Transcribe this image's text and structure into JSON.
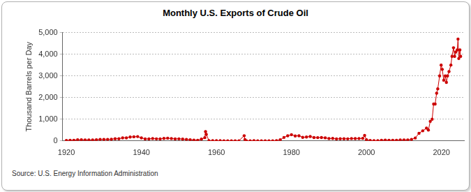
{
  "chart_data": {
    "type": "line",
    "title": "Monthly U.S. Exports of Crude Oil",
    "y_label": "Thousand Barrels per Day",
    "source": "Source: U.S. Energy Information Administration",
    "color": "#cc0000",
    "marker": "circle",
    "line_style": "solid",
    "grid": true,
    "xlim": [
      1919,
      2026
    ],
    "xticks": [
      1920,
      1940,
      1960,
      1980,
      2000,
      2020
    ],
    "ylim": [
      0,
      5000
    ],
    "yticks": [
      0,
      {
        "value": 1000,
        "label": "1,000"
      },
      {
        "value": 2000,
        "label": "2,000"
      },
      {
        "value": 3000,
        "label": "3,000"
      },
      {
        "value": 4000,
        "label": "4,000"
      },
      {
        "value": 5000,
        "label": "5,000"
      }
    ],
    "x": [
      1920,
      1921,
      1922,
      1923,
      1924,
      1925,
      1926,
      1927,
      1928,
      1929,
      1930,
      1931,
      1932,
      1933,
      1934,
      1935,
      1936,
      1937,
      1938,
      1939,
      1940,
      1941,
      1942,
      1943,
      1944,
      1945,
      1946,
      1947,
      1948,
      1949,
      1950,
      1951,
      1952,
      1953,
      1954,
      1955,
      1956,
      1956.9,
      1957.1,
      1957.3,
      1958,
      1959,
      1960,
      1961,
      1962,
      1963,
      1964,
      1965,
      1966,
      1967.4,
      1967.6,
      1968,
      1969,
      1970,
      1971,
      1972,
      1973,
      1974,
      1975,
      1976,
      1977,
      1978,
      1979,
      1980,
      1981,
      1982,
      1983,
      1984,
      1985,
      1986,
      1987,
      1988,
      1989,
      1990,
      1991,
      1992,
      1993,
      1994,
      1995,
      1996,
      1997,
      1998,
      1999,
      1999.5,
      2000,
      2001,
      2002,
      2003,
      2004,
      2005,
      2006,
      2007,
      2008,
      2009,
      2010,
      2011,
      2012,
      2013,
      2014,
      2015,
      2016,
      2016.5,
      2017,
      2017.5,
      2017.9,
      2018.3,
      2018.7,
      2019,
      2019.5,
      2019.9,
      2020.2,
      2020.6,
      2021,
      2021.3,
      2021.6,
      2022,
      2022.5,
      2022.8,
      2023.2,
      2023.5,
      2023.8,
      2024.2,
      2024.4,
      2024.6,
      2024.9,
      2025.1
    ],
    "values": [
      20,
      25,
      30,
      50,
      50,
      40,
      40,
      40,
      50,
      70,
      65,
      70,
      75,
      100,
      100,
      140,
      140,
      180,
      190,
      200,
      140,
      90,
      90,
      110,
      95,
      90,
      115,
      125,
      110,
      90,
      95,
      80,
      70,
      55,
      35,
      30,
      80,
      150,
      430,
      300,
      15,
      10,
      8,
      8,
      5,
      6,
      5,
      5,
      5,
      240,
      60,
      5,
      4,
      14,
      1,
      1,
      2,
      3,
      6,
      8,
      50,
      160,
      235,
      287,
      228,
      236,
      164,
      181,
      204,
      154,
      151,
      155,
      142,
      109,
      116,
      89,
      98,
      99,
      95,
      110,
      108,
      110,
      118,
      250,
      50,
      20,
      9,
      12,
      27,
      32,
      25,
      27,
      29,
      44,
      42,
      47,
      67,
      134,
      351,
      465,
      591,
      500,
      900,
      1000,
      1700,
      1700,
      2200,
      2400,
      3000,
      3500,
      3300,
      2800,
      3000,
      2700,
      3000,
      3200,
      3500,
      3900,
      4300,
      3900,
      4100,
      4200,
      4700,
      3800,
      4200,
      3900
    ]
  }
}
